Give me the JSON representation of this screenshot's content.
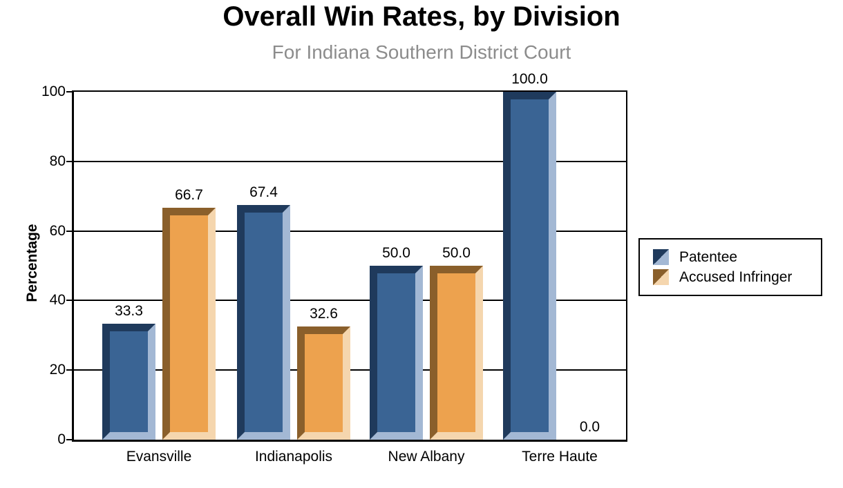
{
  "title": "Overall Win Rates, by Division",
  "subtitle": "For Indiana Southern District Court",
  "colors": {
    "patentee_face": "#3A6494",
    "patentee_dark": "#1F3A5C",
    "patentee_light": "#A3B8D4",
    "accused_face": "#EDA24E",
    "accused_dark": "#8A5F2B",
    "accused_light": "#F5D6AE",
    "subtitle_text": "#8C8C8C",
    "axis": "#000000",
    "background": "#FFFFFF"
  },
  "chart_data": {
    "type": "bar",
    "title": "Overall Win Rates, by Division",
    "subtitle": "For Indiana Southern District Court",
    "categories": [
      "Evansville",
      "Indianapolis",
      "New Albany",
      "Terre Haute"
    ],
    "series": [
      {
        "name": "Patentee",
        "values": [
          33.3,
          67.4,
          50.0,
          100.0
        ],
        "color_face": "#3A6494",
        "color_dark": "#1F3A5C",
        "color_light": "#A3B8D4"
      },
      {
        "name": "Accused Infringer",
        "values": [
          66.7,
          32.6,
          50.0,
          0.0
        ],
        "color_face": "#EDA24E",
        "color_dark": "#8A5F2B",
        "color_light": "#F5D6AE"
      }
    ],
    "xlabel": "",
    "ylabel": "Percentage",
    "ylim": [
      0,
      100
    ],
    "yticks": [
      0,
      20,
      40,
      60,
      80,
      100
    ],
    "grid": true,
    "legend_position": "right",
    "data_labels": true,
    "value_label_format": "one_decimal"
  },
  "legend": {
    "items": [
      {
        "label": "Patentee"
      },
      {
        "label": "Accused Infringer"
      }
    ]
  }
}
